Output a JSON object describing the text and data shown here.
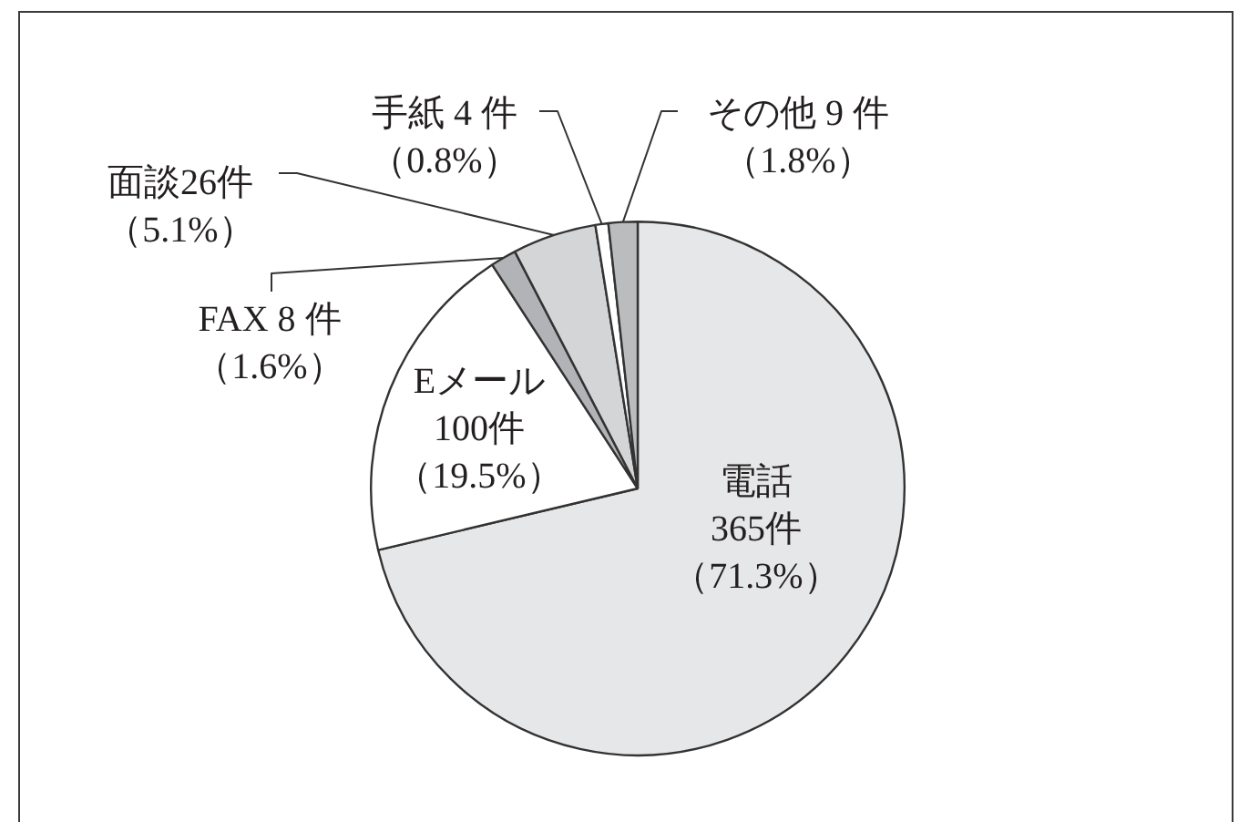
{
  "chart_data": {
    "type": "pie",
    "categories": [
      "電話",
      "Eメール",
      "FAX",
      "面談",
      "手紙",
      "その他"
    ],
    "values": [
      365,
      100,
      8,
      26,
      4,
      9
    ],
    "colors": [
      "#e6e7e8",
      "#ffffff",
      "#b1b3b6",
      "#d3d5d7",
      "#ffffff",
      "#babcbe"
    ],
    "value_labels": [
      "365件（71.3%）",
      "100件（19.5%）",
      " 8 件（1.6%）",
      "26件（5.1%）",
      " 4 件（0.8%）",
      " 9 件（1.8%）"
    ]
  }
}
